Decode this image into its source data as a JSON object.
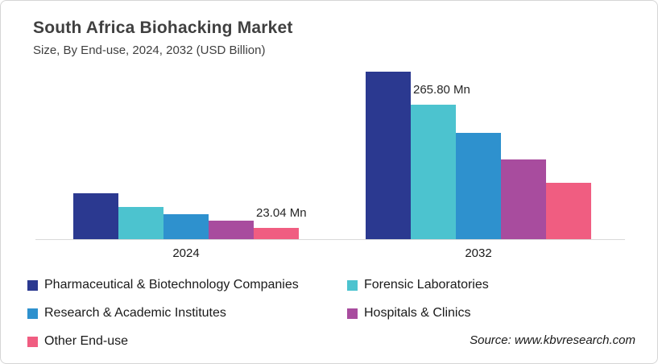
{
  "header": {
    "title": "South Africa Biohacking Market",
    "subtitle": "Size, By End-use, 2024, 2032 (USD Billion)"
  },
  "source": "Source: www.kbvresearch.com",
  "colors": {
    "pharma_navy": "#2B3990",
    "forensic_teal": "#4CC3CF",
    "research_blue": "#2E91CE",
    "hospitals_purple": "#A84C9E",
    "other_pink": "#F05D81",
    "axis_line": "#D9D9D9",
    "title_gray": "#404040"
  },
  "chart_data": {
    "type": "bar",
    "title": "South Africa Biohacking Market",
    "subtitle": "Size, By End-use, 2024, 2032 (USD Billion)",
    "unit": "USD Mn",
    "categories": [
      "2024",
      "2032"
    ],
    "series": [
      {
        "name": "Pharmaceutical & Biotechnology Companies",
        "color": "#2B3990",
        "values": [
          91,
          331
        ]
      },
      {
        "name": "Forensic Laboratories",
        "color": "#4CC3CF",
        "values": [
          64,
          265.8
        ]
      },
      {
        "name": "Research & Academic Institutes",
        "color": "#2E91CE",
        "values": [
          49,
          210
        ]
      },
      {
        "name": "Hospitals & Clinics",
        "color": "#A84C9E",
        "values": [
          36,
          158
        ]
      },
      {
        "name": "Other End-use",
        "color": "#F05D81",
        "values": [
          23.04,
          111
        ]
      }
    ],
    "data_labels": [
      {
        "text": "23.04 Mn",
        "category_index": 0,
        "series_index": 4
      },
      {
        "text": "265.80 Mn",
        "category_index": 1,
        "series_index": 1
      }
    ],
    "ylim": [
      0,
      344
    ],
    "grid": false,
    "y_axis_visible": false,
    "legend_position": "bottom"
  }
}
